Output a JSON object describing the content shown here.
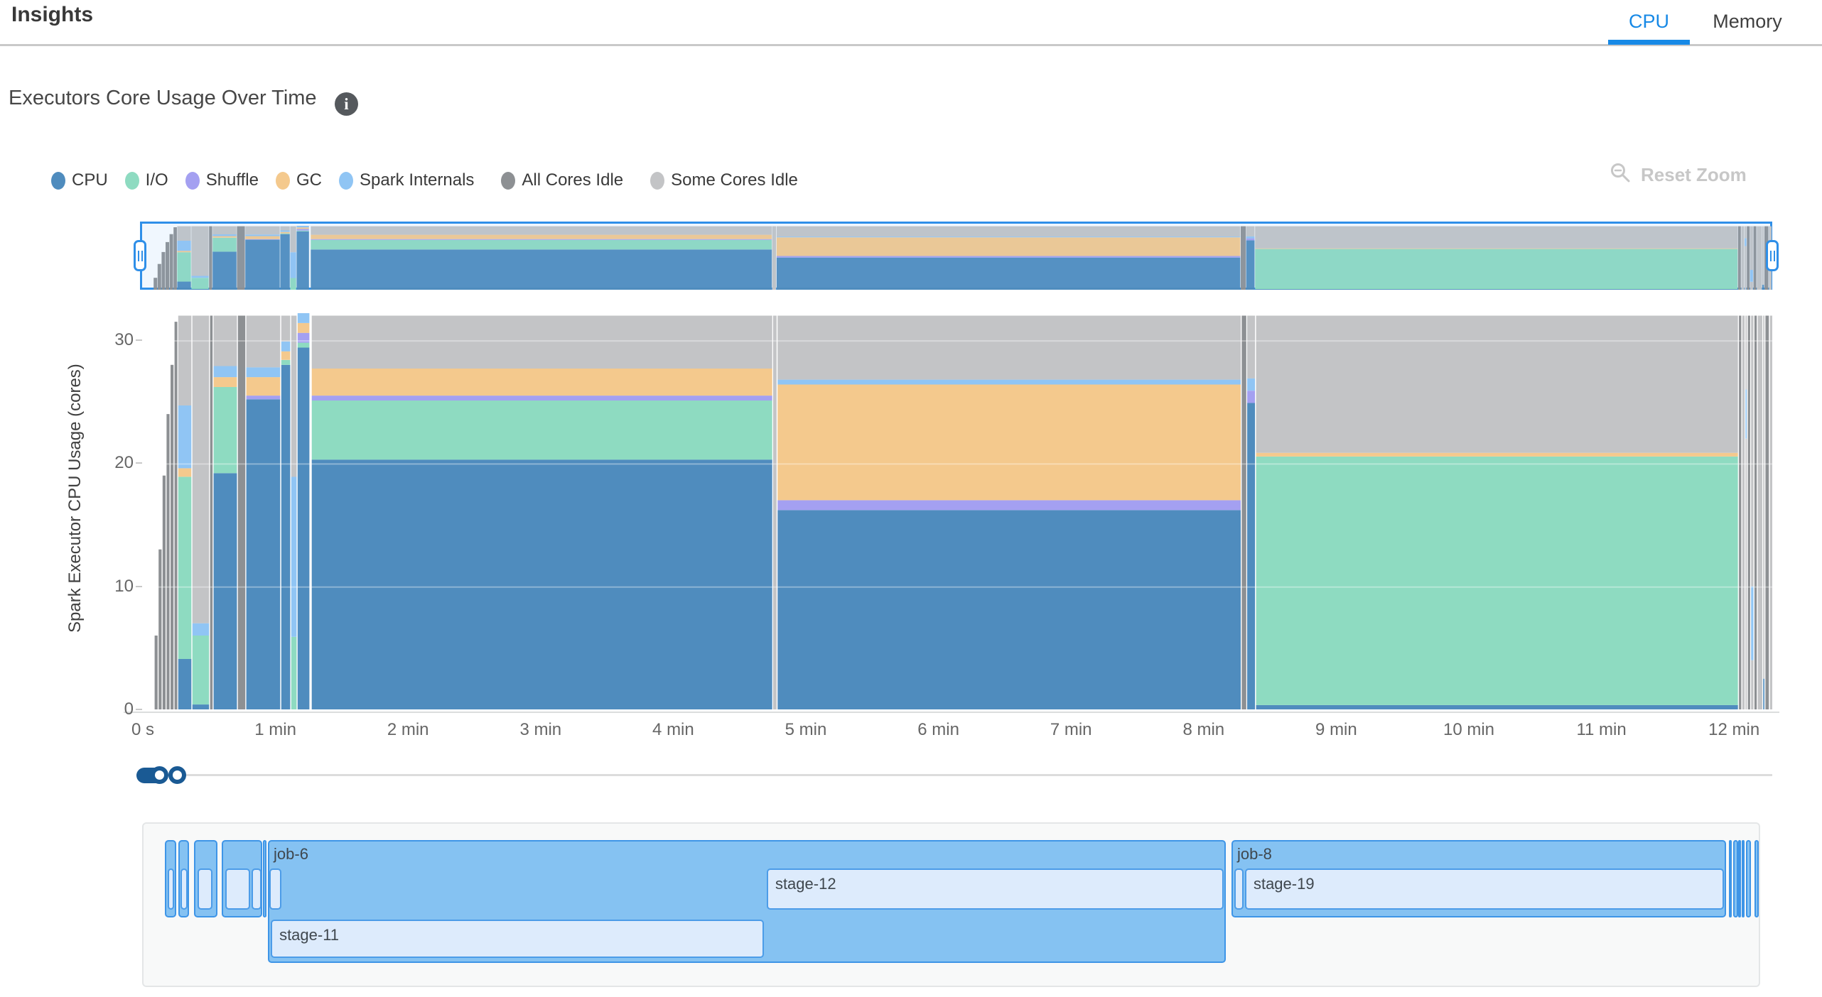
{
  "header": {
    "title": "Insights",
    "tabs": [
      {
        "label": "CPU",
        "active": true
      },
      {
        "label": "Memory",
        "active": false
      }
    ],
    "accent_color": "#1789E6"
  },
  "section": {
    "title": "Executors Core Usage Over Time"
  },
  "toolbar": {
    "reset_zoom_label": "Reset Zoom",
    "reset_zoom_disabled_color": "#C7C7C7"
  },
  "legend": {
    "position": "top-left",
    "items": [
      {
        "key": "cpu",
        "label": "CPU",
        "color": "#4F8CBE"
      },
      {
        "key": "io",
        "label": "I/O",
        "color": "#8EDBC1"
      },
      {
        "key": "shuffle",
        "label": "Shuffle",
        "color": "#A4A0F1"
      },
      {
        "key": "gc",
        "label": "GC",
        "color": "#F4C98D"
      },
      {
        "key": "spark",
        "label": "Spark Internals",
        "color": "#90C5F4"
      },
      {
        "key": "idle_all",
        "label": "All Cores Idle",
        "color": "#8D9093"
      },
      {
        "key": "idle_some",
        "label": "Some Cores Idle",
        "color": "#C3C4C6"
      }
    ]
  },
  "chart_data": {
    "type": "area",
    "title": "Executors Core Usage Over Time",
    "ylabel": "Spark Executor CPU Usage (cores)",
    "xlabel": "",
    "total_cores": 32,
    "y_range": [
      0,
      32.2
    ],
    "y_ticks": [
      0,
      10,
      20,
      30
    ],
    "x_range_s": [
      0,
      737.5
    ],
    "x_ticks": [
      {
        "t": 0,
        "label": "0 s"
      },
      {
        "t": 60,
        "label": "1 min"
      },
      {
        "t": 120,
        "label": "2 min"
      },
      {
        "t": 180,
        "label": "3 min"
      },
      {
        "t": 240,
        "label": "4 min"
      },
      {
        "t": 300,
        "label": "5 min"
      },
      {
        "t": 360,
        "label": "6 min"
      },
      {
        "t": 420,
        "label": "7 min"
      },
      {
        "t": 480,
        "label": "8 min"
      },
      {
        "t": 540,
        "label": "9 min"
      },
      {
        "t": 600,
        "label": "10 min"
      },
      {
        "t": 660,
        "label": "11 min"
      },
      {
        "t": 720,
        "label": "12 min"
      }
    ],
    "grid": "horizontal-white",
    "legend_position": "top-left",
    "segments": [
      {
        "t0": 5.1,
        "t1": 6.9,
        "spans": [
          [
            "idle_all",
            0,
            6
          ]
        ]
      },
      {
        "t0": 6.9,
        "t1": 8.7,
        "spans": [
          [
            "idle_all",
            0,
            13
          ]
        ]
      },
      {
        "t0": 8.7,
        "t1": 10.5,
        "spans": [
          [
            "idle_all",
            0,
            19
          ]
        ]
      },
      {
        "t0": 10.5,
        "t1": 12.3,
        "spans": [
          [
            "idle_all",
            0,
            24
          ]
        ]
      },
      {
        "t0": 12.3,
        "t1": 14.1,
        "spans": [
          [
            "idle_all",
            0,
            28
          ]
        ]
      },
      {
        "t0": 14.1,
        "t1": 15.8,
        "spans": [
          [
            "idle_all",
            0,
            31.5
          ]
        ]
      },
      {
        "t0": 15.8,
        "t1": 22.2,
        "spans": [
          [
            "cpu",
            0,
            4.1
          ],
          [
            "io",
            4.1,
            18.9
          ],
          [
            "gc",
            18.9,
            19.6
          ],
          [
            "spark",
            19.6,
            24.7
          ],
          [
            "idle_some",
            24.7,
            32
          ]
        ]
      },
      {
        "t0": 22.2,
        "t1": 30.2,
        "spans": [
          [
            "cpu",
            0,
            0.4
          ],
          [
            "io",
            0.4,
            6.0
          ],
          [
            "spark",
            6.0,
            7.0
          ],
          [
            "idle_some",
            7.0,
            32
          ]
        ]
      },
      {
        "t0": 30.2,
        "t1": 31.8,
        "spans": [
          [
            "idle_all",
            0,
            32
          ]
        ]
      },
      {
        "t0": 31.8,
        "t1": 42.8,
        "spans": [
          [
            "cpu",
            0,
            19.2
          ],
          [
            "io",
            19.2,
            26.2
          ],
          [
            "gc",
            26.2,
            27.0
          ],
          [
            "spark",
            27.0,
            27.9
          ],
          [
            "idle_some",
            27.9,
            32
          ]
        ]
      },
      {
        "t0": 42.8,
        "t1": 46.6,
        "spans": [
          [
            "idle_all",
            0,
            32
          ]
        ]
      },
      {
        "t0": 46.6,
        "t1": 62.4,
        "spans": [
          [
            "cpu",
            0,
            25.2
          ],
          [
            "shuffle",
            25.2,
            25.5
          ],
          [
            "gc",
            25.5,
            27.0
          ],
          [
            "spark",
            27.0,
            27.8
          ],
          [
            "idle_some",
            27.8,
            32
          ]
        ]
      },
      {
        "t0": 62.4,
        "t1": 66.9,
        "spans": [
          [
            "cpu",
            0,
            28.0
          ],
          [
            "io",
            28.0,
            28.4
          ],
          [
            "gc",
            28.4,
            29.1
          ],
          [
            "spark",
            29.1,
            29.9
          ],
          [
            "idle_some",
            29.9,
            32
          ]
        ]
      },
      {
        "t0": 66.9,
        "t1": 69.8,
        "spans": [
          [
            "io",
            0,
            5.9
          ],
          [
            "spark",
            5.9,
            18.9
          ],
          [
            "idle_some",
            18.9,
            32
          ]
        ]
      },
      {
        "t0": 69.8,
        "t1": 75.6,
        "spans": [
          [
            "cpu",
            0,
            29.4
          ],
          [
            "io",
            29.4,
            29.8
          ],
          [
            "shuffle",
            29.8,
            30.6
          ],
          [
            "gc",
            30.6,
            31.4
          ],
          [
            "spark",
            31.4,
            32.2
          ]
        ]
      },
      {
        "t0": 76.2,
        "t1": 285,
        "spans": [
          [
            "cpu",
            0,
            20.3
          ],
          [
            "io",
            20.3,
            25.1
          ],
          [
            "shuffle",
            25.1,
            25.5
          ],
          [
            "gc",
            25.5,
            27.7
          ],
          [
            "idle_some",
            27.7,
            32
          ]
        ]
      },
      {
        "t0": 285,
        "t1": 287,
        "spans": [
          [
            "idle_some",
            0,
            32
          ]
        ]
      },
      {
        "t0": 287,
        "t1": 497,
        "spans": [
          [
            "cpu",
            0,
            16.2
          ],
          [
            "shuffle",
            16.2,
            17.0
          ],
          [
            "gc",
            17.0,
            26.4
          ],
          [
            "spark",
            26.4,
            26.8
          ],
          [
            "idle_some",
            26.8,
            32
          ]
        ]
      },
      {
        "t0": 497,
        "t1": 499.5,
        "spans": [
          [
            "idle_all",
            0,
            32
          ]
        ]
      },
      {
        "t0": 499.5,
        "t1": 503.5,
        "spans": [
          [
            "cpu",
            0,
            24.9
          ],
          [
            "shuffle",
            24.9,
            25.9
          ],
          [
            "spark",
            25.9,
            26.9
          ],
          [
            "idle_some",
            26.9,
            32
          ]
        ]
      },
      {
        "t0": 503.5,
        "t1": 722,
        "spans": [
          [
            "cpu",
            0,
            0.35
          ],
          [
            "io",
            0.35,
            20.55
          ],
          [
            "gc",
            20.55,
            20.85
          ],
          [
            "idle_some",
            20.85,
            32
          ]
        ]
      },
      {
        "t0": 722,
        "t1": 723.5,
        "spans": [
          [
            "idle_all",
            0,
            32
          ]
        ]
      },
      {
        "t0": 723.5,
        "t1": 725,
        "spans": [
          [
            "idle_some",
            0,
            32
          ]
        ]
      },
      {
        "t0": 725,
        "t1": 726,
        "spans": [
          [
            "idle_some",
            0,
            22
          ],
          [
            "spark",
            22,
            26
          ],
          [
            "idle_some",
            26,
            32
          ]
        ]
      },
      {
        "t0": 726,
        "t1": 727.5,
        "spans": [
          [
            "idle_all",
            0,
            32
          ]
        ]
      },
      {
        "t0": 727.5,
        "t1": 729,
        "spans": [
          [
            "idle_some",
            0,
            4
          ],
          [
            "spark",
            4,
            10
          ],
          [
            "idle_some",
            10,
            32
          ]
        ]
      },
      {
        "t0": 729,
        "t1": 730.5,
        "spans": [
          [
            "idle_all",
            0,
            32
          ]
        ]
      },
      {
        "t0": 730.5,
        "t1": 733,
        "spans": [
          [
            "idle_some",
            0,
            32
          ]
        ]
      },
      {
        "t0": 733,
        "t1": 734,
        "spans": [
          [
            "cpu",
            0,
            2.5
          ],
          [
            "idle_some",
            2.5,
            32
          ]
        ]
      },
      {
        "t0": 734,
        "t1": 736,
        "spans": [
          [
            "idle_all",
            0,
            32
          ]
        ]
      },
      {
        "t0": 736,
        "t1": 737.5,
        "spans": [
          [
            "idle_some",
            0,
            32
          ]
        ]
      }
    ]
  },
  "brush": {
    "selection_t": [
      0,
      737.5
    ]
  },
  "timeline": {
    "jobs": [
      {
        "label": "",
        "t0": 10,
        "t1": 15.1,
        "tall": false,
        "stages": [
          {
            "label": "",
            "t0": 11.3,
            "t1": 14.1,
            "row": 1
          }
        ]
      },
      {
        "label": "",
        "t0": 16.1,
        "t1": 20.9,
        "tall": false,
        "stages": [
          {
            "label": "",
            "t0": 17.0,
            "t1": 20.3,
            "row": 1
          }
        ]
      },
      {
        "label": "",
        "t0": 23.2,
        "t1": 33.8,
        "tall": false,
        "stages": [
          {
            "label": "",
            "t0": 24.8,
            "t1": 31.5,
            "row": 1
          }
        ]
      },
      {
        "label": "",
        "t0": 35.7,
        "t1": 54.0,
        "tall": false,
        "stages": [
          {
            "label": "",
            "t0": 37.3,
            "t1": 48.6,
            "row": 1
          },
          {
            "label": "",
            "t0": 49.2,
            "t1": 53.7,
            "row": 1
          }
        ]
      },
      {
        "label": "",
        "t0": 54.2,
        "t1": 55.8,
        "tall": false,
        "stages": []
      },
      {
        "label": "job-6",
        "t0": 56.6,
        "t1": 490,
        "tall": true,
        "stages": [
          {
            "label": "",
            "t0": 57.2,
            "t1": 62.7,
            "row": 1
          },
          {
            "label": "stage-12",
            "t0": 282.3,
            "t1": 489,
            "row": 1
          },
          {
            "label": "stage-11",
            "t0": 57.9,
            "t1": 281,
            "row": 2
          }
        ]
      },
      {
        "label": "job-8",
        "t0": 492.6,
        "t1": 716.4,
        "tall": false,
        "stages": [
          {
            "label": "",
            "t0": 493.9,
            "t1": 498.1,
            "row": 1
          },
          {
            "label": "stage-19",
            "t0": 498.7,
            "t1": 715.4,
            "row": 1
          }
        ]
      },
      {
        "label": "",
        "t0": 717.7,
        "t1": 719.0,
        "tall": false,
        "stages": []
      },
      {
        "label": "",
        "t0": 719.6,
        "t1": 721.9,
        "tall": false,
        "stages": []
      },
      {
        "label": "",
        "t0": 722.0,
        "t1": 723.3,
        "tall": false,
        "stages": []
      },
      {
        "label": "",
        "t0": 723.5,
        "t1": 724.8,
        "tall": false,
        "stages": []
      },
      {
        "label": "",
        "t0": 725.4,
        "t1": 727.7,
        "tall": false,
        "stages": []
      },
      {
        "label": "",
        "t0": 729.3,
        "t1": 731.2,
        "tall": false,
        "stages": []
      }
    ]
  }
}
